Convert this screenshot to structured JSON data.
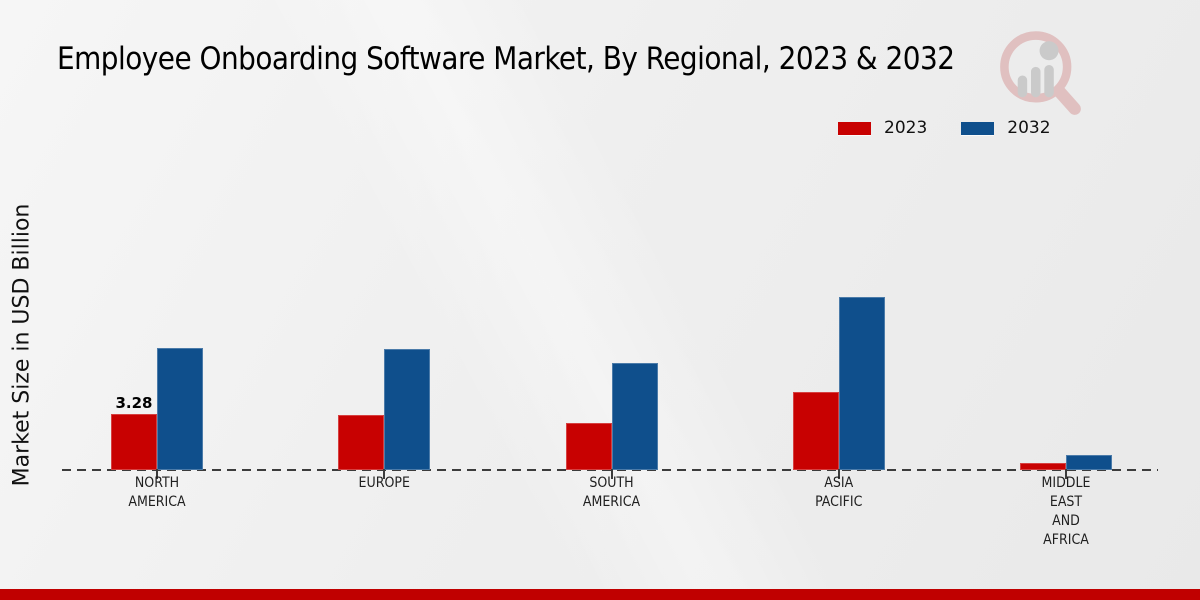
{
  "title": "Employee Onboarding Software Market, By Regional, 2023 & 2032",
  "legend": {
    "position": "top-right",
    "items": [
      {
        "label": "2023",
        "color": "#c80101"
      },
      {
        "label": "2032",
        "color": "#0f4f8c"
      }
    ]
  },
  "watermark": {
    "icon": "market-research-magnifier-logo"
  },
  "footer": {
    "color": "#c00000"
  },
  "theme": {
    "background_top": "#f6f6f6",
    "background_bottom": "#e9e9e9",
    "axis_color": "#3c3c3c",
    "text_color": "#111111"
  },
  "chart_data": {
    "type": "bar",
    "title": "Employee Onboarding Software Market, By Regional, 2023 & 2032",
    "xlabel": "",
    "ylabel": "Market Size in USD Billion",
    "categories": [
      "NORTH AMERICA",
      "EUROPE",
      "SOUTH AMERICA",
      "ASIA PACIFIC",
      "MIDDLE EAST AND AFRICA"
    ],
    "categories_lines": [
      [
        "NORTH",
        "AMERICA"
      ],
      [
        "EUROPE"
      ],
      [
        "SOUTH",
        "AMERICA"
      ],
      [
        "ASIA",
        "PACIFIC"
      ],
      [
        "MIDDLE",
        "EAST",
        "AND",
        "AFRICA"
      ]
    ],
    "series": [
      {
        "name": "2023",
        "color": "#c80101",
        "values": [
          3.28,
          3.22,
          2.75,
          4.57,
          0.39
        ]
      },
      {
        "name": "2032",
        "color": "#0f4f8c",
        "values": [
          7.15,
          7.09,
          6.27,
          10.13,
          0.86
        ]
      }
    ],
    "annotations": [
      {
        "series_index": 0,
        "category_index": 0,
        "text": "3.28"
      }
    ],
    "ylim": [
      0,
      10.5
    ],
    "grid": false,
    "y_axis_visible": false,
    "baseline_style": "dashed",
    "legend_position": "top-right"
  }
}
